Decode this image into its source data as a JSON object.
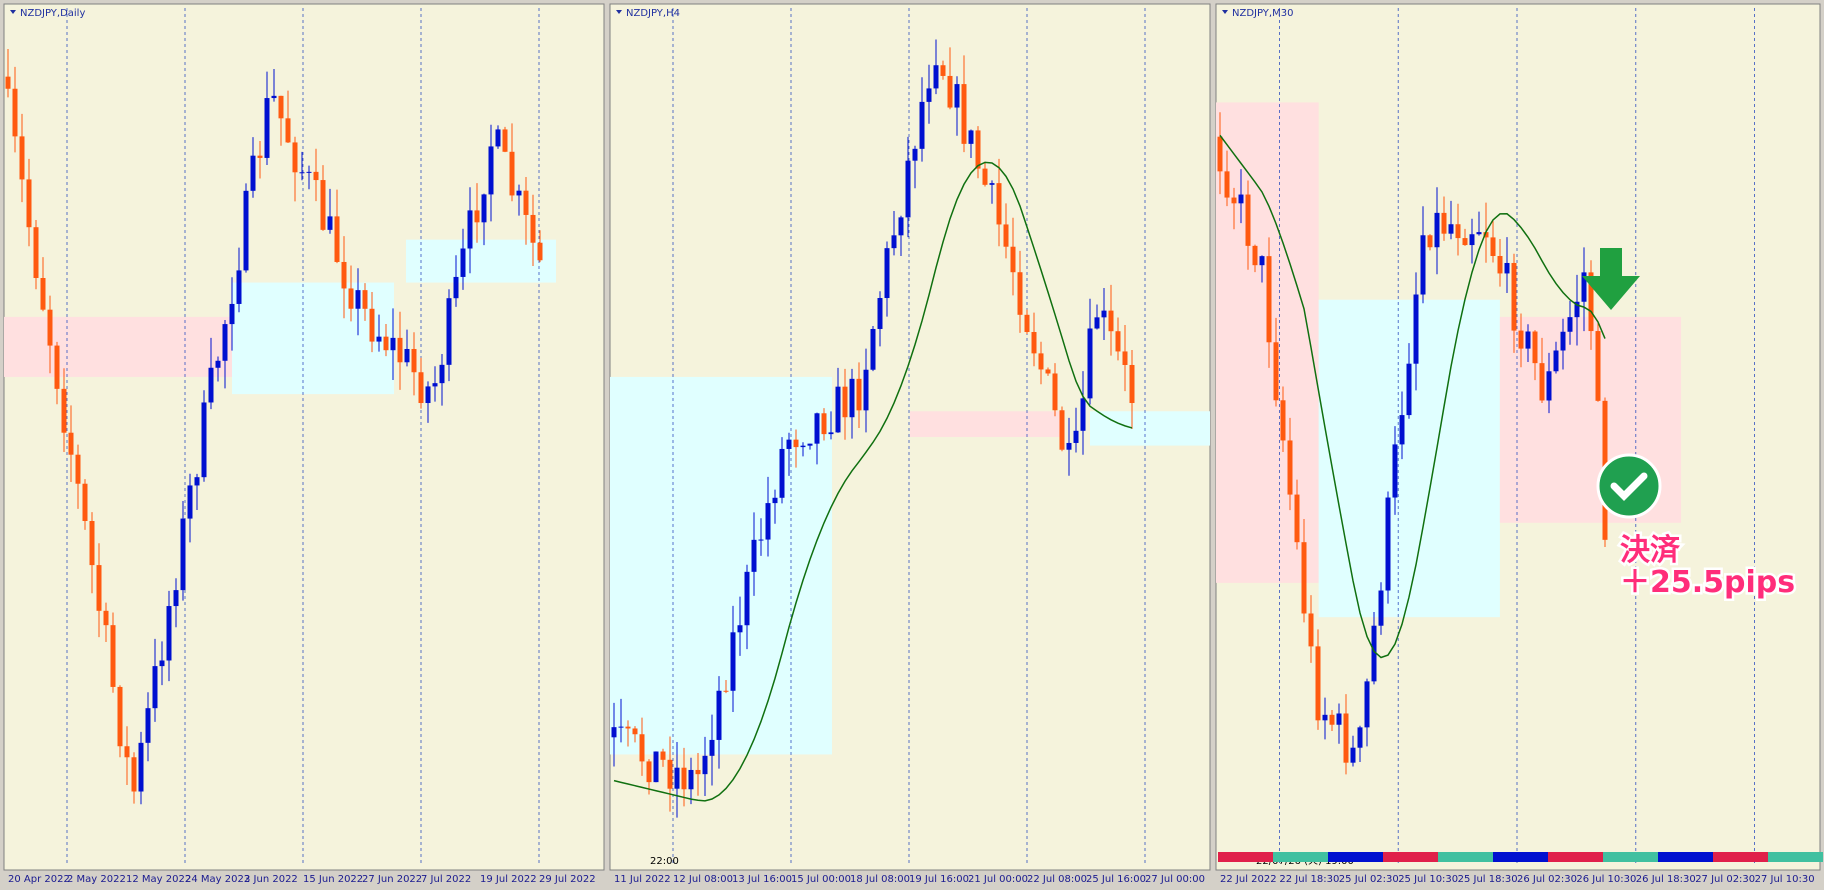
{
  "panels": [
    {
      "title": "NZDJPY,Daily",
      "x_labels": [
        "20 Apr 2022",
        "2 May 2022",
        "12 May 2022",
        "24 May 2022",
        "3 Jun 2022",
        "15 Jun 2022",
        "27 Jun 2022",
        "7 Jul 2022",
        "19 Jul 2022",
        "29 Jul 2022"
      ]
    },
    {
      "title": "NZDJPY,H4",
      "time_label": "22:00",
      "x_labels": [
        "11 Jul 2022",
        "12 Jul 08:00",
        "13 Jul 16:00",
        "15 Jul 00:00",
        "18 Jul 08:00",
        "19 Jul 16:00",
        "21 Jul 00:00",
        "22 Jul 08:00",
        "25 Jul 16:00",
        "27 Jul 00:00"
      ]
    },
    {
      "title": "NZDJPY,M30",
      "time_label": "22/07/26 (火) 19:00",
      "x_labels": [
        "22 Jul 2022",
        "22 Jul 18:30",
        "25 Jul 02:30",
        "25 Jul 10:30",
        "25 Jul 18:30",
        "26 Jul 02:30",
        "26 Jul 10:30",
        "26 Jul 18:30",
        "27 Jul 02:30",
        "27 Jul 10:30"
      ]
    }
  ],
  "annotation": {
    "line1": "決済",
    "line2": "＋25.5pips"
  }
}
